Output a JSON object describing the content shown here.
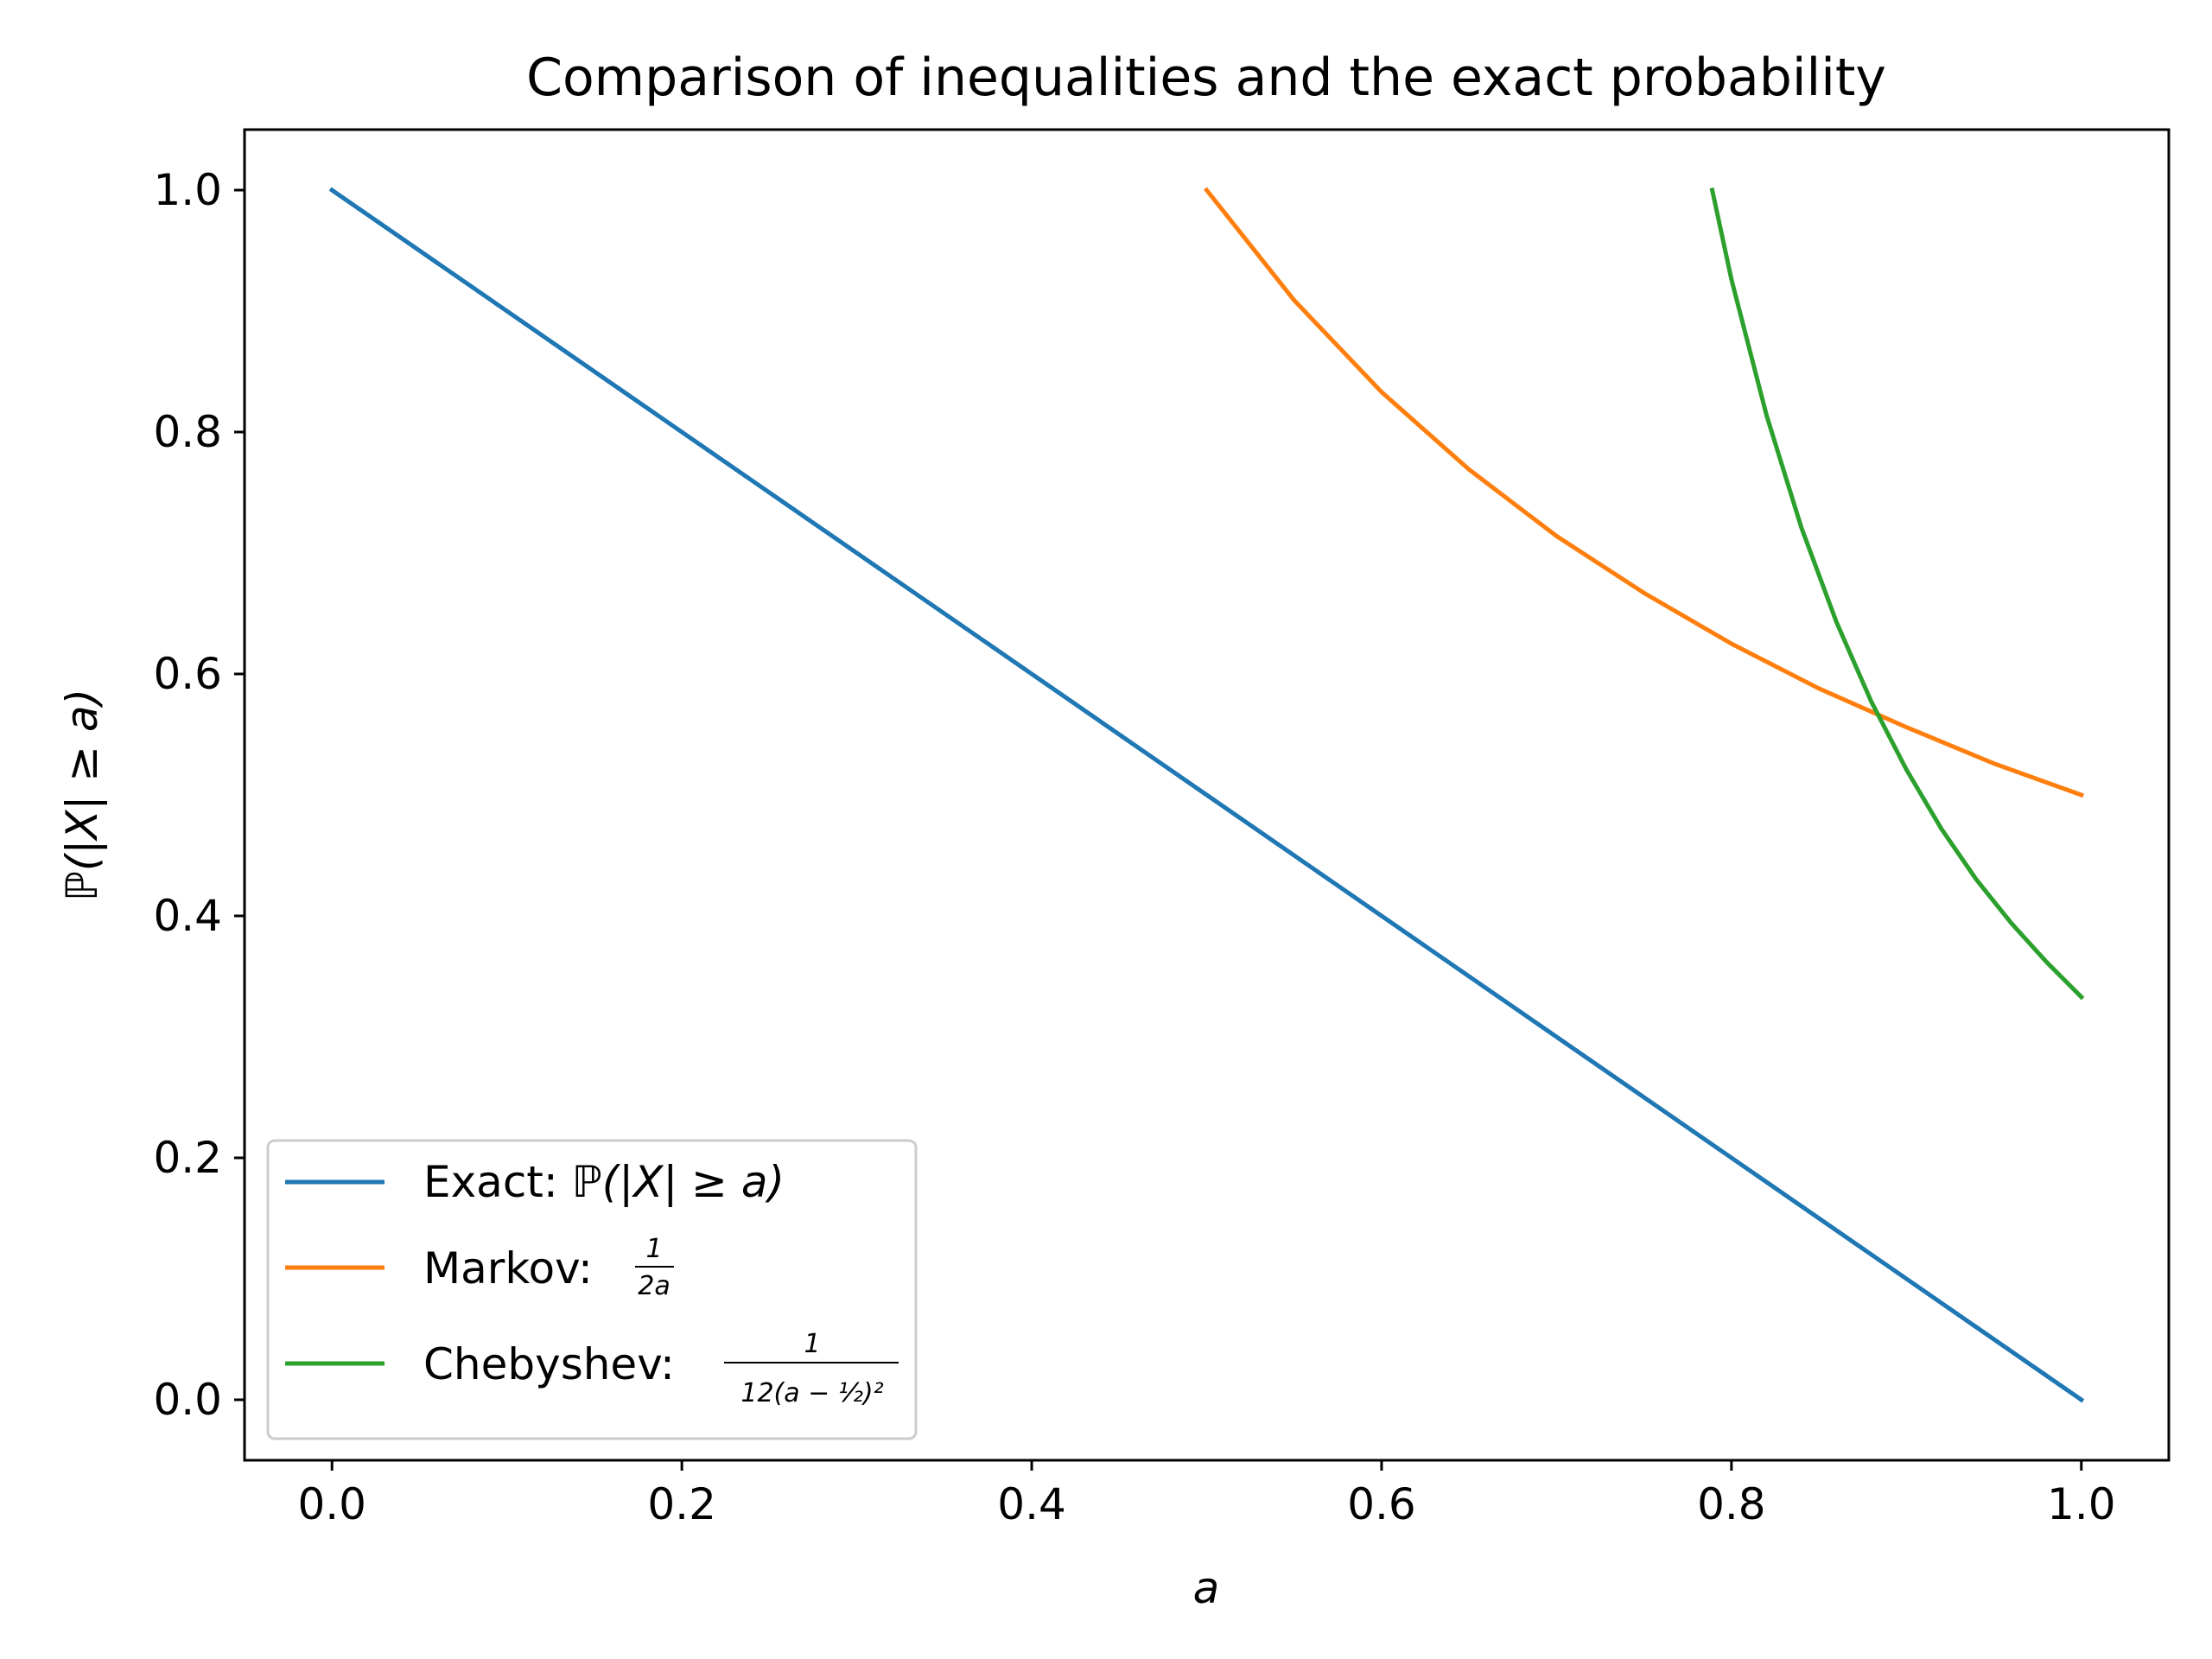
{
  "chart_data": {
    "type": "line",
    "title": "Comparison of inequalities and the exact probability",
    "xlabel": "a",
    "ylabel": "ℙ(|X| ≥ a)",
    "xlim": [
      -0.05,
      1.05
    ],
    "ylim": [
      -0.05,
      1.05
    ],
    "xticks": [
      "0.0",
      "0.2",
      "0.4",
      "0.6",
      "0.8",
      "1.0"
    ],
    "yticks": [
      "0.0",
      "0.2",
      "0.4",
      "0.6",
      "0.8",
      "1.0"
    ],
    "grid": false,
    "legend_position": "lower-left",
    "series": [
      {
        "name": "Exact: ℙ(|X| ≥ a)",
        "color": "#1f77b4",
        "x": [
          0.0,
          1.0
        ],
        "y": [
          1.0,
          0.0
        ]
      },
      {
        "name": "Markov: 1/(2a)",
        "color": "#ff7f0e",
        "x": [
          0.5,
          0.55,
          0.6,
          0.65,
          0.7,
          0.75,
          0.8,
          0.85,
          0.9,
          0.95,
          1.0
        ],
        "y": [
          1.0,
          0.909,
          0.833,
          0.769,
          0.714,
          0.667,
          0.625,
          0.588,
          0.556,
          0.526,
          0.5
        ]
      },
      {
        "name": "Chebyshev: 1/(12(a − 1/2)²)",
        "color": "#2ca02c",
        "x": [
          0.789,
          0.8,
          0.82,
          0.84,
          0.86,
          0.88,
          0.9,
          0.92,
          0.94,
          0.96,
          0.98,
          1.0
        ],
        "y": [
          1.0,
          0.926,
          0.814,
          0.721,
          0.643,
          0.577,
          0.521,
          0.472,
          0.43,
          0.394,
          0.362,
          0.333
        ]
      }
    ],
    "legend": {
      "exact_prefix": "Exact: ",
      "exact_math": "ℙ(|X| ≥ a)",
      "markov_prefix": "Markov: ",
      "markov_num": "1",
      "markov_den": "2a",
      "cheb_prefix": "Chebyshev: ",
      "cheb_num": "1",
      "cheb_den": "12(a − ½)²"
    }
  }
}
